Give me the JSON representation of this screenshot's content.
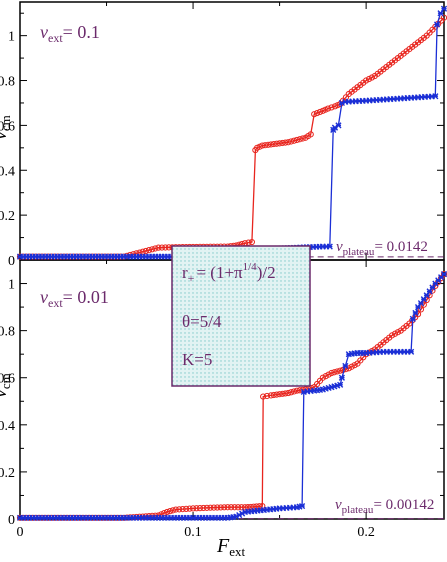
{
  "colors": {
    "red": "#e8251e",
    "blue": "#1b2fd6",
    "annotation": "#6b2a6b",
    "box_fill": "#bfe6e6",
    "dashed": "#6b2a6b"
  },
  "axis_labels": {
    "y_main": "v",
    "y_sub": "cm",
    "x_main": "F",
    "x_sub": "ext"
  },
  "x_ticks": [
    "0",
    "0.1",
    "0.2"
  ],
  "y_ticks": [
    "0",
    "0.2",
    "0.4",
    "0.6",
    "0.8",
    "1"
  ],
  "params": {
    "r_pre": "r",
    "r_sub": "+",
    "r_mid": "= (1+π",
    "r_sup": "1/4",
    "r_post": ")/2",
    "theta": "θ=5/4",
    "k": "K=5"
  },
  "chart_data": [
    {
      "type": "line",
      "panel": "top",
      "annotation": {
        "v": "v",
        "sub": "ext",
        "val": "= 0.1"
      },
      "plateau": {
        "v": "v",
        "sub": "plateau",
        "val": "= 0.0142",
        "y": 0.0142
      },
      "xlim": [
        0,
        0.245
      ],
      "ylim": [
        0,
        1.15
      ],
      "grid": false,
      "series": [
        {
          "color": "red",
          "marker": "circle",
          "x": [
            0,
            0.02,
            0.04,
            0.06,
            0.08,
            0.09,
            0.1,
            0.11,
            0.12,
            0.125,
            0.13,
            0.134,
            0.136,
            0.137,
            0.14,
            0.145,
            0.15,
            0.155,
            0.16,
            0.165,
            0.168,
            0.17,
            0.175,
            0.178,
            0.18,
            0.182,
            0.185,
            0.19,
            0.195,
            0.2,
            0.205,
            0.21,
            0.215,
            0.22,
            0.225,
            0.23,
            0.235,
            0.24,
            0.245
          ],
          "y": [
            0.015,
            0.015,
            0.015,
            0.015,
            0.055,
            0.057,
            0.058,
            0.059,
            0.06,
            0.065,
            0.075,
            0.08,
            0.49,
            0.5,
            0.51,
            0.515,
            0.52,
            0.525,
            0.535,
            0.545,
            0.56,
            0.65,
            0.665,
            0.675,
            0.68,
            0.685,
            0.695,
            0.74,
            0.77,
            0.8,
            0.82,
            0.85,
            0.88,
            0.91,
            0.94,
            0.97,
            1.0,
            1.04,
            1.08
          ]
        },
        {
          "color": "blue",
          "marker": "cross",
          "x": [
            0,
            0.04,
            0.08,
            0.1,
            0.12,
            0.14,
            0.16,
            0.175,
            0.179,
            0.181,
            0.182,
            0.184,
            0.186,
            0.188,
            0.2,
            0.21,
            0.22,
            0.23,
            0.24,
            0.241,
            0.243,
            0.245
          ],
          "y": [
            0.015,
            0.015,
            0.015,
            0.015,
            0.04,
            0.048,
            0.055,
            0.06,
            0.06,
            0.58,
            0.59,
            0.6,
            0.7,
            0.705,
            0.71,
            0.715,
            0.72,
            0.725,
            0.73,
            1.05,
            1.1,
            1.12
          ]
        }
      ]
    },
    {
      "type": "line",
      "panel": "bottom",
      "annotation": {
        "v": "v",
        "sub": "ext",
        "val": "= 0.01"
      },
      "plateau": {
        "v": "v",
        "sub": "plateau",
        "val": "= 0.00142",
        "y": 0.00142
      },
      "xlim": [
        0,
        0.245
      ],
      "ylim": [
        0,
        1.1
      ],
      "grid": false,
      "series": [
        {
          "color": "red",
          "marker": "circle",
          "x": [
            0,
            0.02,
            0.04,
            0.06,
            0.08,
            0.085,
            0.09,
            0.1,
            0.11,
            0.12,
            0.13,
            0.135,
            0.14,
            0.1405,
            0.145,
            0.15,
            0.155,
            0.16,
            0.165,
            0.17,
            0.175,
            0.18,
            0.185,
            0.19,
            0.195,
            0.2,
            0.205,
            0.21,
            0.215,
            0.22,
            0.225,
            0.23,
            0.235,
            0.24,
            0.245
          ],
          "y": [
            0.005,
            0.005,
            0.005,
            0.005,
            0.015,
            0.03,
            0.04,
            0.045,
            0.048,
            0.05,
            0.05,
            0.052,
            0.055,
            0.52,
            0.525,
            0.53,
            0.535,
            0.545,
            0.55,
            0.56,
            0.6,
            0.62,
            0.63,
            0.64,
            0.66,
            0.7,
            0.72,
            0.75,
            0.78,
            0.8,
            0.83,
            0.87,
            0.93,
            0.99,
            1.04
          ]
        },
        {
          "color": "blue",
          "marker": "cross",
          "x": [
            0,
            0.04,
            0.08,
            0.1,
            0.12,
            0.125,
            0.13,
            0.15,
            0.16,
            0.163,
            0.164,
            0.17,
            0.175,
            0.18,
            0.185,
            0.186,
            0.19,
            0.195,
            0.2,
            0.21,
            0.22,
            0.226,
            0.227,
            0.23,
            0.235,
            0.24,
            0.245
          ],
          "y": [
            0.005,
            0.005,
            0.005,
            0.005,
            0.005,
            0.01,
            0.03,
            0.045,
            0.05,
            0.055,
            0.54,
            0.545,
            0.55,
            0.56,
            0.57,
            0.6,
            0.7,
            0.705,
            0.705,
            0.71,
            0.71,
            0.71,
            0.85,
            0.9,
            0.95,
            1.0,
            1.04
          ]
        }
      ]
    }
  ]
}
